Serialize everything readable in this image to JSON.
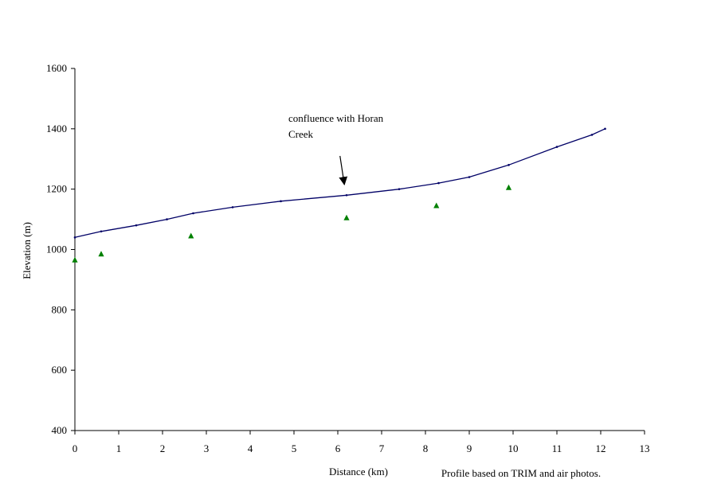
{
  "chart_data": {
    "type": "line",
    "title": "",
    "xlabel": "Distance (km)",
    "ylabel": "Elevation (m)",
    "xlim": [
      0,
      13
    ],
    "ylim": [
      400,
      1600
    ],
    "x_ticks": [
      0,
      1,
      2,
      3,
      4,
      5,
      6,
      7,
      8,
      9,
      10,
      11,
      12,
      13
    ],
    "y_ticks": [
      400,
      600,
      800,
      1000,
      1200,
      1400,
      1600
    ],
    "grid": false,
    "legend": "none",
    "series": [
      {
        "type": "line",
        "color": "#000066",
        "points": [
          [
            0,
            1040
          ],
          [
            0.6,
            1060
          ],
          [
            1.4,
            1080
          ],
          [
            2.1,
            1100
          ],
          [
            2.7,
            1120
          ],
          [
            3.6,
            1140
          ],
          [
            4.7,
            1160
          ],
          [
            6.2,
            1180
          ],
          [
            7.4,
            1200
          ],
          [
            8.3,
            1220
          ],
          [
            9.0,
            1240
          ],
          [
            9.9,
            1280
          ],
          [
            11.0,
            1340
          ],
          [
            11.8,
            1380
          ],
          [
            12.1,
            1400
          ]
        ]
      },
      {
        "type": "scatter",
        "marker": "triangle",
        "color": "#008000",
        "points": [
          [
            0,
            965
          ],
          [
            0.6,
            985
          ],
          [
            2.65,
            1045
          ],
          [
            6.2,
            1105
          ],
          [
            8.25,
            1145
          ],
          [
            9.9,
            1205
          ]
        ]
      }
    ],
    "annotations": [
      {
        "lines": [
          "confluence with Horan",
          "Creek"
        ],
        "arrow_tail": [
          6.05,
          1310
        ],
        "arrow_head": [
          6.15,
          1215
        ]
      }
    ],
    "footnote": "Profile based on  TRIM and air photos."
  }
}
